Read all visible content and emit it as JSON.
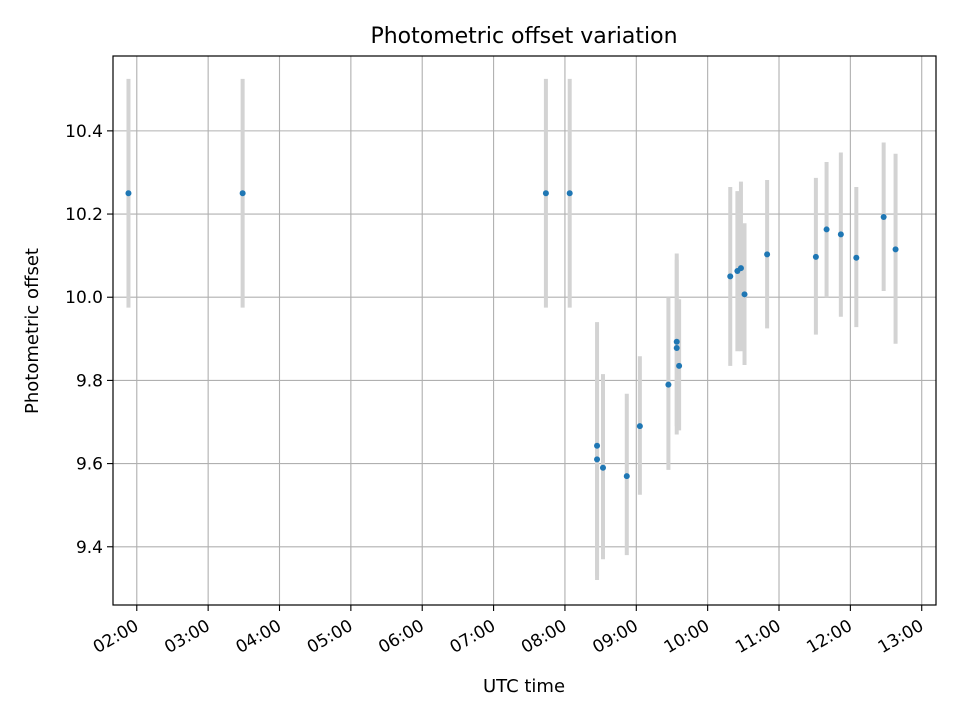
{
  "chart_data": {
    "type": "scatter",
    "title": "Photometric offset variation",
    "xlabel": "UTC time",
    "ylabel": "Photometric offset",
    "xlim": [
      "01:40",
      "13:12"
    ],
    "ylim": [
      9.26,
      10.58
    ],
    "grid": true,
    "legend": "none",
    "x_ticks": [
      "02:00",
      "03:00",
      "04:00",
      "05:00",
      "06:00",
      "07:00",
      "08:00",
      "09:00",
      "10:00",
      "11:00",
      "12:00",
      "13:00"
    ],
    "y_ticks": [
      "9.4",
      "9.6",
      "9.8",
      "10.0",
      "10.2",
      "10.4"
    ],
    "colors": {
      "point": "#1f77b4",
      "errorbar": "#d3d3d3",
      "grid": "#b0b0b0"
    },
    "points": [
      {
        "time": "01:53",
        "y": 10.25,
        "err_low": 9.975,
        "err_high": 10.525
      },
      {
        "time": "03:29",
        "y": 10.25,
        "err_low": 9.975,
        "err_high": 10.525
      },
      {
        "time": "07:44",
        "y": 10.25,
        "err_low": 9.975,
        "err_high": 10.525
      },
      {
        "time": "08:04",
        "y": 10.25,
        "err_low": 9.975,
        "err_high": 10.525
      },
      {
        "time": "08:27",
        "y": 9.643,
        "err_low": 9.32,
        "err_high": 9.94
      },
      {
        "time": "08:27",
        "y": 9.61,
        "err_low": 9.33,
        "err_high": 9.81
      },
      {
        "time": "08:32",
        "y": 9.59,
        "err_low": 9.37,
        "err_high": 9.815
      },
      {
        "time": "08:52",
        "y": 9.57,
        "err_low": 9.38,
        "err_high": 9.768
      },
      {
        "time": "09:03",
        "y": 9.69,
        "err_low": 9.525,
        "err_high": 9.858
      },
      {
        "time": "09:27",
        "y": 9.79,
        "err_low": 9.585,
        "err_high": 10.0
      },
      {
        "time": "09:34",
        "y": 9.878,
        "err_low": 9.67,
        "err_high": 10.09
      },
      {
        "time": "09:34",
        "y": 9.893,
        "err_low": 9.69,
        "err_high": 10.105
      },
      {
        "time": "09:36",
        "y": 9.835,
        "err_low": 9.68,
        "err_high": 9.995
      },
      {
        "time": "10:19",
        "y": 10.05,
        "err_low": 9.835,
        "err_high": 10.265
      },
      {
        "time": "10:25",
        "y": 10.063,
        "err_low": 9.87,
        "err_high": 10.255
      },
      {
        "time": "10:28",
        "y": 10.07,
        "err_low": 9.87,
        "err_high": 10.278
      },
      {
        "time": "10:31",
        "y": 10.007,
        "err_low": 9.837,
        "err_high": 10.178
      },
      {
        "time": "10:50",
        "y": 10.103,
        "err_low": 9.925,
        "err_high": 10.282
      },
      {
        "time": "11:31",
        "y": 10.097,
        "err_low": 9.91,
        "err_high": 10.287
      },
      {
        "time": "11:40",
        "y": 10.163,
        "err_low": 10.0,
        "err_high": 10.325
      },
      {
        "time": "11:52",
        "y": 10.151,
        "err_low": 9.953,
        "err_high": 10.348
      },
      {
        "time": "12:05",
        "y": 10.095,
        "err_low": 9.928,
        "err_high": 10.265
      },
      {
        "time": "12:28",
        "y": 10.193,
        "err_low": 10.015,
        "err_high": 10.372
      },
      {
        "time": "12:38",
        "y": 10.115,
        "err_low": 9.888,
        "err_high": 10.345
      }
    ]
  }
}
